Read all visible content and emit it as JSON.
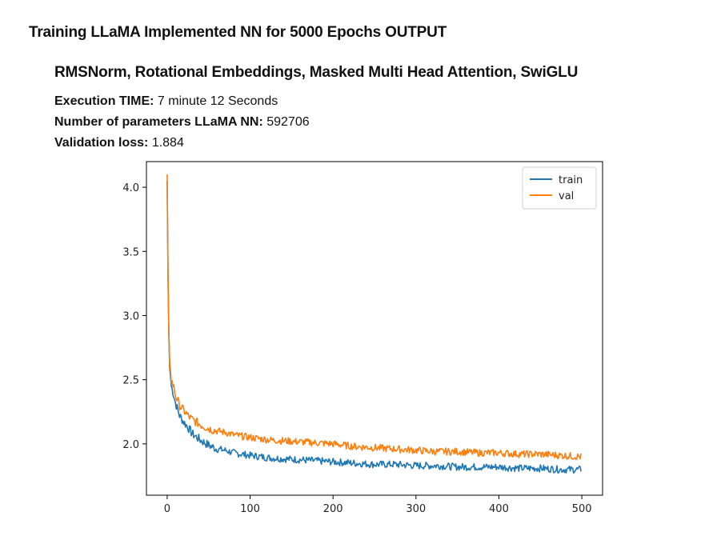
{
  "page": {
    "title": "Training LLaMA Implemented NN for 5000 Epochs OUTPUT",
    "subtitle": "RMSNorm, Rotational Embeddings, Masked Multi Head Attention, SwiGLU",
    "execution_time_label": "Execution TIME:",
    "execution_time_value": "7 minute 12 Seconds",
    "params_label": "Number of parameters LLaMA NN:",
    "params_value": "592706",
    "val_loss_label": "Validation loss:",
    "val_loss_value": "1.884"
  },
  "chart_data": {
    "type": "line",
    "title": "",
    "xlabel": "",
    "ylabel": "",
    "xlim": [
      -25,
      525
    ],
    "ylim": [
      1.6,
      4.2
    ],
    "xticks": [
      0,
      100,
      200,
      300,
      400,
      500
    ],
    "yticks": [
      2.0,
      2.5,
      3.0,
      3.5,
      4.0
    ],
    "xtick_labels": [
      "0",
      "100",
      "200",
      "300",
      "400",
      "500"
    ],
    "ytick_labels": [
      "2.0",
      "2.5",
      "3.0",
      "3.5",
      "4.0"
    ],
    "legend_position": "top-right",
    "series": [
      {
        "name": "train",
        "color": "#1f77b4",
        "x": [
          0,
          1,
          2,
          3,
          5,
          8,
          10,
          15,
          20,
          25,
          30,
          40,
          50,
          60,
          70,
          80,
          90,
          100,
          125,
          150,
          175,
          200,
          225,
          250,
          275,
          300,
          325,
          350,
          375,
          400,
          425,
          450,
          475,
          499
        ],
        "y": [
          4.05,
          3.3,
          2.85,
          2.6,
          2.45,
          2.38,
          2.32,
          2.22,
          2.17,
          2.13,
          2.08,
          2.03,
          1.99,
          1.96,
          1.95,
          1.93,
          1.92,
          1.91,
          1.89,
          1.88,
          1.87,
          1.86,
          1.85,
          1.84,
          1.84,
          1.83,
          1.83,
          1.82,
          1.82,
          1.82,
          1.81,
          1.81,
          1.8,
          1.8
        ]
      },
      {
        "name": "val",
        "color": "#ff7f0e",
        "x": [
          0,
          1,
          2,
          3,
          5,
          8,
          10,
          15,
          20,
          25,
          30,
          40,
          50,
          60,
          70,
          80,
          90,
          100,
          125,
          150,
          175,
          200,
          225,
          250,
          275,
          300,
          325,
          350,
          375,
          400,
          425,
          450,
          475,
          499
        ],
        "y": [
          4.1,
          3.35,
          2.9,
          2.65,
          2.5,
          2.44,
          2.38,
          2.3,
          2.26,
          2.22,
          2.19,
          2.15,
          2.12,
          2.1,
          2.09,
          2.07,
          2.06,
          2.05,
          2.03,
          2.02,
          2.01,
          2.0,
          1.98,
          1.97,
          1.96,
          1.95,
          1.94,
          1.94,
          1.93,
          1.93,
          1.92,
          1.92,
          1.91,
          1.9
        ]
      }
    ]
  }
}
